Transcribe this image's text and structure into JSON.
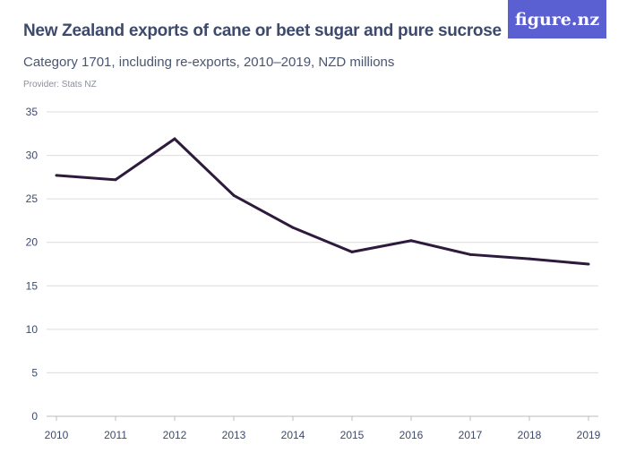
{
  "title": "New Zealand exports of cane or beet sugar and pure sucrose",
  "subtitle": "Category 1701, including re-exports, 2010–2019, NZD millions",
  "provider": "Provider: Stats NZ",
  "logo": "figure.nz",
  "colors": {
    "line": "#2e1a3c",
    "grid": "#dcdcdc",
    "logo_bg": "#5a5fd1",
    "text": "#3d4a6b"
  },
  "chart_data": {
    "type": "line",
    "title": "New Zealand exports of cane or beet sugar and pure sucrose",
    "xlabel": "",
    "ylabel": "",
    "x": [
      "2010",
      "2011",
      "2012",
      "2013",
      "2014",
      "2015",
      "2016",
      "2017",
      "2018",
      "2019"
    ],
    "values": [
      27.7,
      27.2,
      31.9,
      25.4,
      21.7,
      18.9,
      20.2,
      18.6,
      18.1,
      17.5
    ],
    "yticks": [
      0,
      5,
      10,
      15,
      20,
      25,
      30,
      35
    ],
    "ylim": [
      0,
      35
    ],
    "grid": true
  }
}
